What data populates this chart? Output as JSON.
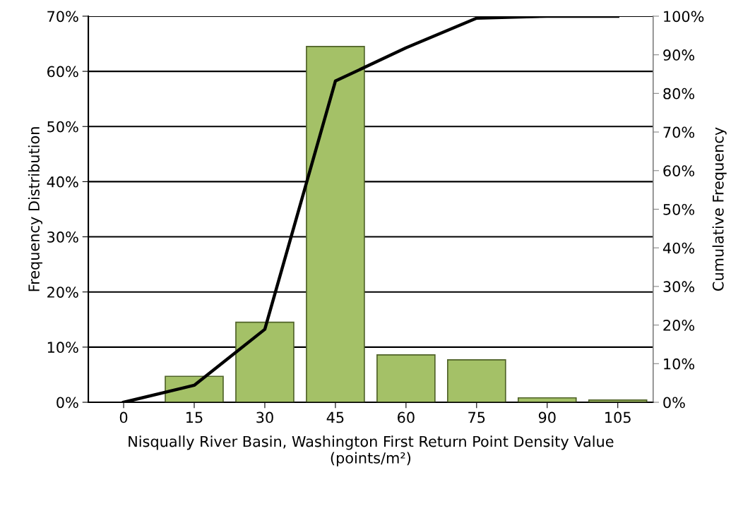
{
  "chart_data": {
    "type": "bar",
    "categories": [
      "0",
      "15",
      "30",
      "45",
      "60",
      "75",
      "90",
      "105"
    ],
    "xlabel": "Nisqually River Basin, Washington First Return Point Density Value\n(points/m²)",
    "ylabel": "Frequency Distribution",
    "y2label": "Cumulative Frequency",
    "series": [
      {
        "color": "#a4c167",
        "values": [
          null,
          4.7,
          14.5,
          64.5,
          8.6,
          7.7,
          0.8,
          0.4
        ]
      },
      {
        "type": "line",
        "axis": "y2",
        "color": "#000000",
        "values": [
          0,
          4.4,
          18.9,
          83.2,
          91.8,
          99.5,
          100,
          100
        ]
      }
    ],
    "ylim": [
      0,
      70
    ],
    "yticks": [
      {
        "value": 0,
        "label": "0%"
      },
      {
        "value": 10,
        "label": "10%"
      },
      {
        "value": 20,
        "label": "20%"
      },
      {
        "value": 30,
        "label": "30%"
      },
      {
        "value": 40,
        "label": "40%"
      },
      {
        "value": 50,
        "label": "50%"
      },
      {
        "value": 60,
        "label": "60%"
      },
      {
        "value": 70,
        "label": "70%"
      }
    ],
    "y2lim": [
      0,
      100
    ],
    "y2ticks": [
      {
        "value": 0,
        "label": "0%"
      },
      {
        "value": 10,
        "label": "10%"
      },
      {
        "value": 20,
        "label": "20%"
      },
      {
        "value": 30,
        "label": "30%"
      },
      {
        "value": 40,
        "label": "40%"
      },
      {
        "value": 50,
        "label": "50%"
      },
      {
        "value": 60,
        "label": "60%"
      },
      {
        "value": 70,
        "label": "70%"
      },
      {
        "value": 80,
        "label": "80%"
      },
      {
        "value": 90,
        "label": "90%"
      },
      {
        "value": 100,
        "label": "100%"
      }
    ],
    "grid": "y",
    "marker": "none",
    "line_style": "solid"
  }
}
